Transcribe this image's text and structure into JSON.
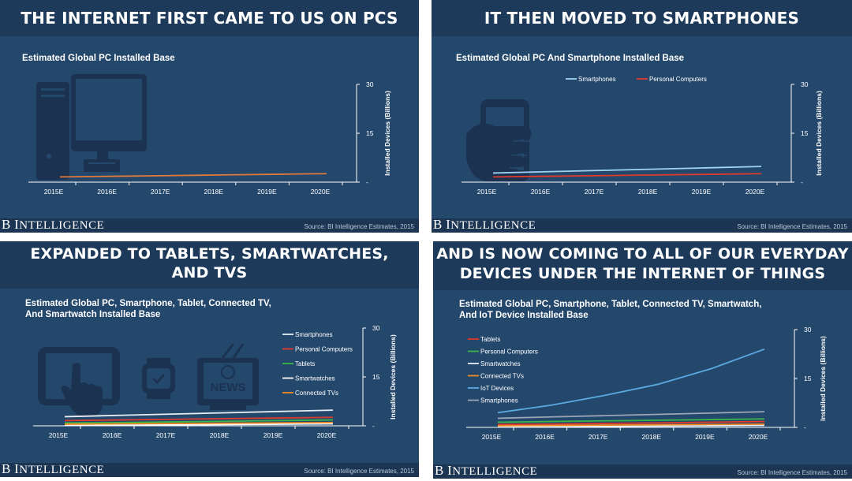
{
  "panels": [
    {
      "heading": [
        "THE INTERNET FIRST CAME TO US ON PCS"
      ],
      "chart_title": [
        "Estimated Global PC Installed Base"
      ],
      "source": "Source: BI Intelligence Estimates, 2015",
      "brand": {
        "initial_b": "B",
        "initial_i": "I",
        "rest_1": "",
        "word": "NTELLIGENCE"
      }
    },
    {
      "heading": [
        "IT THEN MOVED TO SMARTPHONES"
      ],
      "chart_title": [
        "Estimated Global PC And Smartphone Installed Base"
      ],
      "source": "Source: BI Intelligence Estimates, 2015",
      "brand": {
        "initial_b": "B",
        "initial_i": "I",
        "rest_1": "",
        "word": "NTELLIGENCE"
      }
    },
    {
      "heading": [
        "EXPANDED TO TABLETS, SMARTWATCHES,",
        "AND TVS"
      ],
      "chart_title": [
        "Estimated Global PC, Smartphone, Tablet, Connected TV,",
        "And Smartwatch Installed Base"
      ],
      "source": "Source: BI Intelligence Estimates, 2015",
      "brand": {
        "initial_b": "B",
        "initial_i": "I",
        "rest_1": "",
        "word": "NTELLIGENCE"
      },
      "icon_text": "NEWS"
    },
    {
      "heading": [
        "AND IS NOW COMING TO ALL OF OUR EVERYDAY",
        "DEVICES UNDER THE INTERNET OF THINGS"
      ],
      "chart_title": [
        "Estimated Global PC, Smartphone, Tablet, Connected TV, Smartwatch,",
        "And IoT Device Installed Base"
      ],
      "source": "Source: BI Intelligence Estimates, 2015",
      "brand": {
        "initial_b": "B",
        "initial_i": "I",
        "rest_1": "",
        "word": "NTELLIGENCE"
      }
    }
  ],
  "colors": {
    "smartphones": "#9fd3f2",
    "pc": "#e07a3c",
    "pc_green": "#39b54a",
    "tablets": "#e03a2c",
    "smartwatches": "#e8eef5",
    "connected_tv": "#f08a24",
    "iot": "#5aa9e0",
    "panel_bg": "#24476c",
    "header_bg": "#1d3a5a"
  },
  "chart_data": [
    {
      "type": "line",
      "title": "Estimated Global PC Installed Base",
      "x": [
        "2015E",
        "2016E",
        "2017E",
        "2018E",
        "2019E",
        "2020E"
      ],
      "ylabel": "Installed Devices (Billions)",
      "ylim": [
        0,
        30
      ],
      "yticks": [
        "30",
        "15",
        "-"
      ],
      "legend": [],
      "series": [
        {
          "name": "Personal Computers",
          "color": "#e07a3c",
          "values": [
            1.6,
            1.8,
            2.0,
            2.2,
            2.4,
            2.6
          ]
        }
      ]
    },
    {
      "type": "line",
      "title": "Estimated Global PC And Smartphone Installed Base",
      "x": [
        "2015E",
        "2016E",
        "2017E",
        "2018E",
        "2019E",
        "2020E"
      ],
      "ylabel": "Installed Devices (Billions)",
      "ylim": [
        0,
        30
      ],
      "yticks": [
        "30",
        "15",
        "-"
      ],
      "legend": [
        "Smartphones",
        "Personal Computers"
      ],
      "series": [
        {
          "name": "Smartphones",
          "color": "#9fd3f2",
          "values": [
            2.8,
            3.2,
            3.6,
            4.0,
            4.4,
            4.8
          ]
        },
        {
          "name": "Personal Computers",
          "color": "#e03a2c",
          "values": [
            1.6,
            1.8,
            2.0,
            2.2,
            2.4,
            2.6
          ]
        }
      ]
    },
    {
      "type": "line",
      "title": "Estimated Global PC, Smartphone, Tablet, Connected TV, And Smartwatch Installed Base",
      "x": [
        "2015E",
        "2016E",
        "2017E",
        "2018E",
        "2019E",
        "2020E"
      ],
      "ylabel": "Installed Devices (Billions)",
      "ylim": [
        0,
        30
      ],
      "yticks": [
        "30",
        "15",
        "-"
      ],
      "legend": [
        "Smartphones",
        "Personal Computers",
        "Tablets",
        "Smartwatches",
        "Connected TVs"
      ],
      "series": [
        {
          "name": "Smartphones",
          "color": "#e8eef5",
          "values": [
            2.8,
            3.2,
            3.6,
            4.0,
            4.4,
            4.8
          ]
        },
        {
          "name": "Personal Computers",
          "color": "#e03a2c",
          "values": [
            1.6,
            1.8,
            2.0,
            2.2,
            2.4,
            2.6
          ]
        },
        {
          "name": "Tablets",
          "color": "#39b54a",
          "values": [
            0.9,
            1.0,
            1.2,
            1.4,
            1.6,
            1.8
          ]
        },
        {
          "name": "Smartwatches",
          "color": "#ffffff",
          "values": [
            0.1,
            0.2,
            0.3,
            0.4,
            0.5,
            0.6
          ]
        },
        {
          "name": "Connected TVs",
          "color": "#f08a24",
          "values": [
            0.5,
            0.6,
            0.7,
            0.8,
            0.9,
            1.0
          ]
        }
      ]
    },
    {
      "type": "line",
      "title": "Estimated Global PC, Smartphone, Tablet, Connected TV, Smartwatch, And IoT Device Installed Base",
      "x": [
        "2015E",
        "2016E",
        "2017E",
        "2018E",
        "2019E",
        "2020E"
      ],
      "ylabel": "Installed Devices (Billions)",
      "ylim": [
        0,
        30
      ],
      "yticks": [
        "30",
        "15",
        "-"
      ],
      "legend": [
        "Tablets",
        "Personal Computers",
        "Smartwatches",
        "Connected TVs",
        "IoT Devices",
        "Smartphones"
      ],
      "series": [
        {
          "name": "Tablets",
          "color": "#e03a2c",
          "values": [
            0.9,
            1.0,
            1.2,
            1.4,
            1.6,
            1.8
          ]
        },
        {
          "name": "Personal Computers",
          "color": "#39b54a",
          "values": [
            1.6,
            1.8,
            2.0,
            2.2,
            2.4,
            2.6
          ]
        },
        {
          "name": "Smartwatches",
          "color": "#e8eef5",
          "values": [
            0.1,
            0.2,
            0.3,
            0.4,
            0.5,
            0.6
          ]
        },
        {
          "name": "Connected TVs",
          "color": "#f08a24",
          "values": [
            0.5,
            0.6,
            0.7,
            0.8,
            0.9,
            1.0
          ]
        },
        {
          "name": "IoT Devices",
          "color": "#5aa9e0",
          "values": [
            4.5,
            6.8,
            9.8,
            13.2,
            18.0,
            24.0
          ]
        },
        {
          "name": "Smartphones",
          "color": "#9aa6b6",
          "values": [
            2.8,
            3.2,
            3.6,
            4.0,
            4.4,
            4.8
          ]
        }
      ]
    }
  ]
}
